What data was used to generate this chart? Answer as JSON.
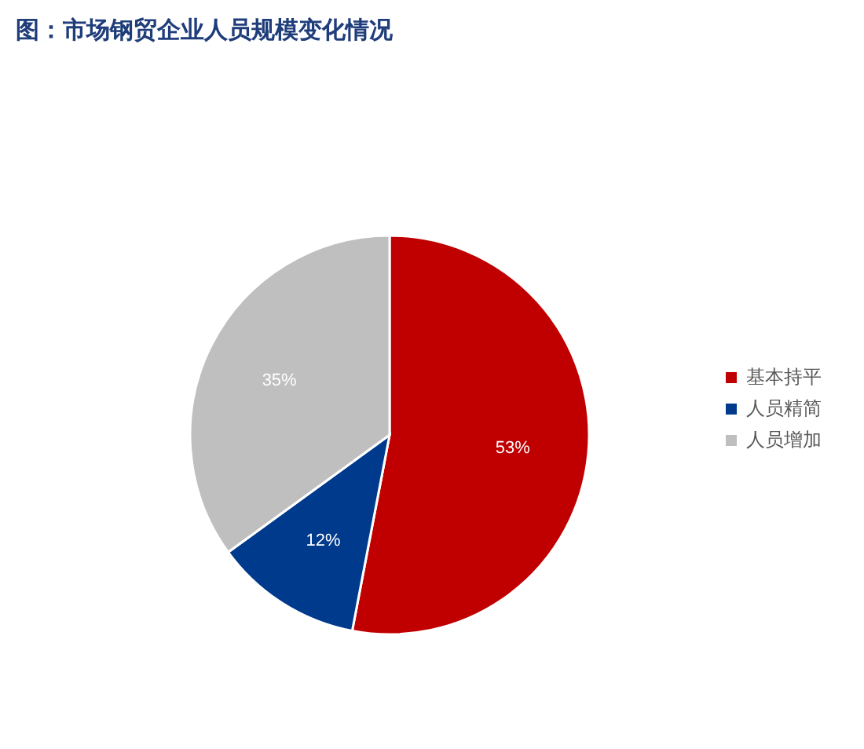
{
  "chart_data": {
    "type": "pie",
    "title": "图：市场钢贸企业人员规模变化情况",
    "categories": [
      "基本持平",
      "人员精简",
      "人员增加"
    ],
    "values": [
      53,
      12,
      35
    ],
    "colors": [
      "#c00000",
      "#003a8c",
      "#bfbfbf"
    ],
    "value_labels": [
      "53%",
      "12%",
      "35%"
    ],
    "legend": "right"
  }
}
